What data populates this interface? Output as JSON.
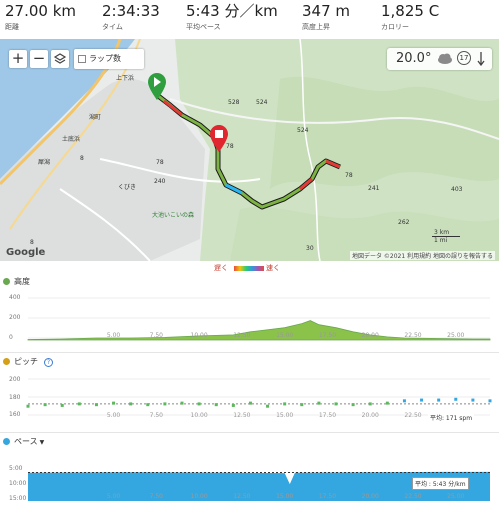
{
  "stats": [
    {
      "value": "27.00 km",
      "label": "距離"
    },
    {
      "value": "2:34:33",
      "label": "タイム"
    },
    {
      "value": "5:43 分／km",
      "label": "平均ペース"
    },
    {
      "value": "347 m",
      "label": "高度上昇"
    },
    {
      "value": "1,825 C",
      "label": "カロリー"
    }
  ],
  "map": {
    "zoom_in": "+",
    "zoom_out": "−",
    "layers_icon": "layers-icon",
    "laps_label": "ラップ数",
    "temperature": "20.0°",
    "wind_badge": "17",
    "google": "Google",
    "attribution": "地図データ ©2021  利用規約  地図の誤りを報告する",
    "scale_km": "3 km",
    "scale_mi": "1 mi",
    "places": [
      "上下浜",
      "潟町",
      "土底浜",
      "犀潟",
      "くびき",
      "大池いこいの森"
    ],
    "road_numbers": [
      "8",
      "8",
      "528",
      "524",
      "78",
      "524",
      "78",
      "241",
      "240",
      "78",
      "403",
      "262",
      "30"
    ],
    "start_color": "#2e9e3e",
    "finish_color": "#e0262f"
  },
  "legend": {
    "slow": "遅く",
    "fast": "速く"
  },
  "charts": {
    "elevation": {
      "title": "高度",
      "color": "#6aa84f",
      "yticks": [
        "400",
        "200",
        "0"
      ],
      "xticks": [
        "5.00",
        "7.50",
        "10.00",
        "12.50",
        "15.00",
        "17.50",
        "20.00",
        "22.50",
        "25.00"
      ]
    },
    "cadence": {
      "title": "ピッチ",
      "color": "#d4a017",
      "yticks": [
        "200",
        "180",
        "160"
      ],
      "xticks": [
        "5.00",
        "7.50",
        "10.00",
        "12.50",
        "15.00",
        "17.50",
        "20.00",
        "22.50",
        "25.00"
      ],
      "average": "平均: 171 spm"
    },
    "pace": {
      "title": "ペース",
      "color": "#35a7e0",
      "yticks": [
        "5:00",
        "10:00",
        "15:00"
      ],
      "xticks": [
        "5.00",
        "7.50",
        "10.00",
        "12.50",
        "15.00",
        "17.50",
        "20.00",
        "22.50",
        "25.00"
      ],
      "average": "平均 : 5:43 分/km"
    }
  },
  "chart_data": [
    {
      "type": "area",
      "title": "高度",
      "x": [
        0,
        2,
        4,
        6,
        8,
        10,
        12,
        13,
        14,
        15,
        16,
        16.5,
        17,
        18,
        19,
        20,
        21,
        22,
        24,
        26,
        27
      ],
      "y": [
        5,
        10,
        20,
        20,
        25,
        40,
        50,
        80,
        100,
        120,
        160,
        190,
        150,
        120,
        80,
        50,
        30,
        20,
        15,
        10,
        10
      ],
      "xlim": [
        0,
        27
      ],
      "ylim": [
        0,
        450
      ],
      "xlabel": "",
      "ylabel": ""
    },
    {
      "type": "scatter",
      "title": "ピッチ",
      "x": [
        0,
        1,
        2,
        3,
        4,
        5,
        6,
        7,
        8,
        9,
        10,
        11,
        12,
        13,
        14,
        15,
        16,
        17,
        18,
        19,
        20,
        21,
        22,
        23,
        24,
        25,
        26,
        27
      ],
      "y": [
        168,
        170,
        169,
        171,
        170,
        172,
        171,
        170,
        171,
        172,
        171,
        170,
        169,
        172,
        168,
        171,
        170,
        172,
        171,
        170,
        171,
        172,
        175,
        176,
        176,
        177,
        176,
        175
      ],
      "xlim": [
        0,
        27
      ],
      "ylim": [
        150,
        210
      ],
      "average": 171
    },
    {
      "type": "area",
      "title": "ペース",
      "x": [
        0,
        3,
        6,
        9,
        12,
        15,
        15.3,
        15.6,
        18,
        21,
        24,
        27
      ],
      "y": [
        5.8,
        5.7,
        5.6,
        5.7,
        5.8,
        5.9,
        9.5,
        5.8,
        5.7,
        5.6,
        5.5,
        5.5
      ],
      "xlim": [
        0,
        27
      ],
      "ylim": [
        15,
        0
      ],
      "average": 5.72
    }
  ]
}
